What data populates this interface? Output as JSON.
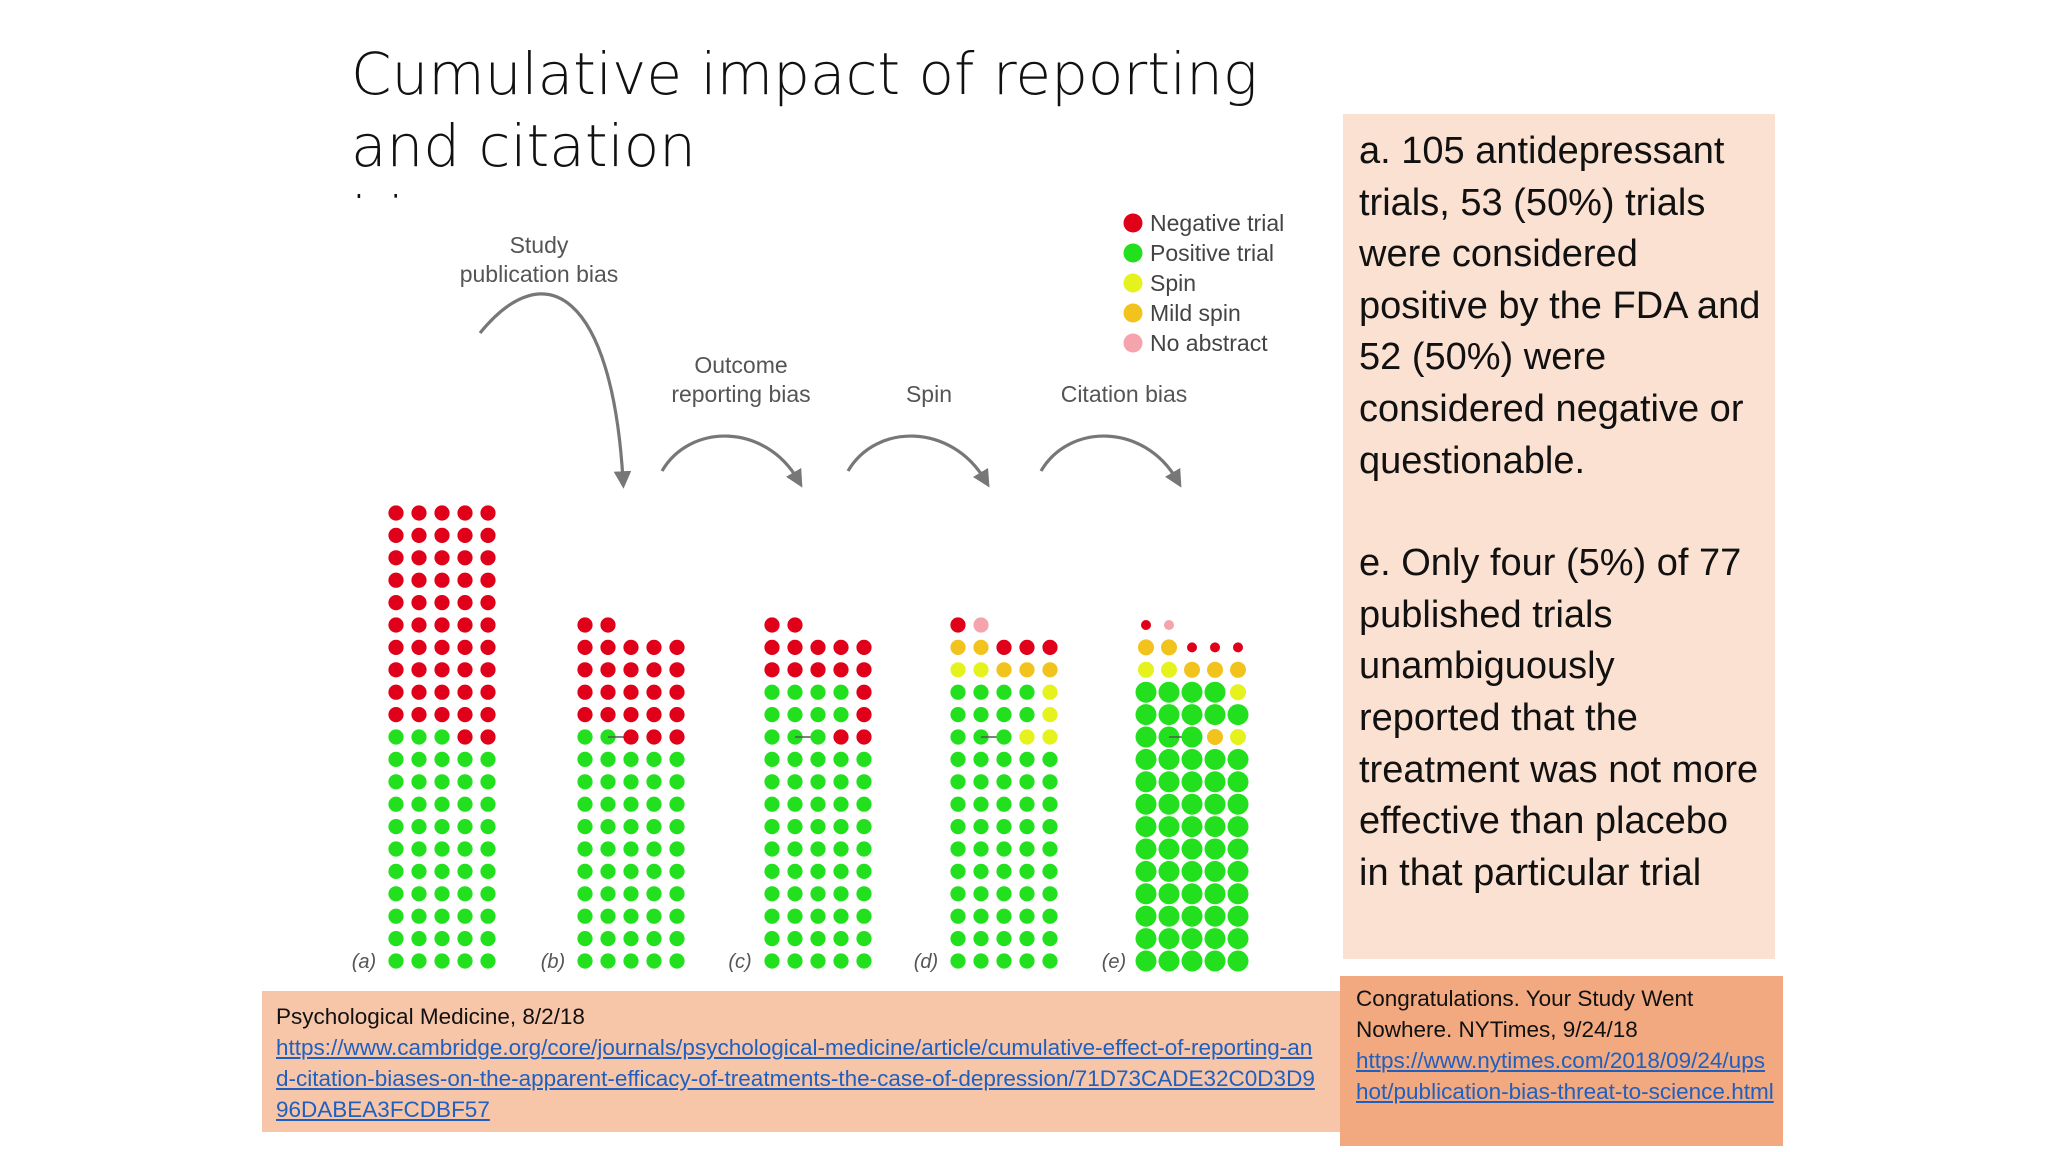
{
  "title": {
    "line1": "Cumulative impact of reporting and citation",
    "line2": "bias"
  },
  "figure": {
    "stage_labels": {
      "study_line1": "Study",
      "study_line2": "publication bias",
      "outcome_line1": "Outcome",
      "outcome_line2": "reporting bias",
      "spin": "Spin",
      "citation": "Citation bias"
    },
    "panel_letters": [
      "(a)",
      "(b)",
      "(c)",
      "(d)",
      "(e)"
    ],
    "legend": [
      {
        "label": "Negative trial",
        "color": "#e0001a"
      },
      {
        "label": "Positive trial",
        "color": "#22e01e"
      },
      {
        "label": "Spin",
        "color": "#e5f21d"
      },
      {
        "label": "Mild spin",
        "color": "#f2c21d"
      },
      {
        "label": "No abstract",
        "color": "#f5a3ad"
      }
    ],
    "colors": {
      "R": "#e0001a",
      "G": "#22e01e",
      "Y": "#e5f21d",
      "O": "#f2c21d",
      "P": "#f5a3ad",
      "arrow": "#777777"
    },
    "panels": [
      {
        "rows": [
          "RRRRR",
          "RRRRR",
          "RRRRR",
          "RRRRR",
          "RRRRR",
          "RRRRR",
          "RRRRR",
          "RRRRR",
          "RRRRR",
          "RRRRR",
          "GGGRR",
          "GGGGG",
          "GGGGG",
          "GGGGG",
          "GGGGG",
          "GGGGG",
          "GGGGG",
          "GGGGG",
          "GGGGG",
          "GGGGG",
          "GGGGG"
        ]
      },
      {
        "top": "RR",
        "rows": [
          "RRRRR",
          "RRRRR",
          "RRRRR",
          "RRRRR",
          "GG-RRR",
          "GGGGG",
          "GGGGG",
          "GGGGG",
          "GGGGG",
          "GGGGG",
          "GGGGG",
          "GGGGG",
          "GGGGG",
          "GGGGG",
          "GGGGG"
        ]
      },
      {
        "top": "RR",
        "rows": [
          "RRRRR",
          "RRRRR",
          "GGGGR",
          "GGGGR",
          "GG-GRR",
          "GGGGG",
          "GGGGG",
          "GGGGG",
          "GGGGG",
          "GGGGG",
          "GGGGG",
          "GGGGG",
          "GGGGG",
          "GGGGG",
          "GGGGG"
        ]
      },
      {
        "top": "RP",
        "rows": [
          "OORRR",
          "YYOOO",
          "GGGGY",
          "GGGGY",
          "GG-GYY",
          "GGGGG",
          "GGGGG",
          "GGGGG",
          "GGGGG",
          "GGGGG",
          "GGGGG",
          "GGGGG",
          "GGGGG",
          "GGGGG",
          "GGGGG"
        ]
      },
      {
        "top": "rp",
        "rows": [
          "OOrrr",
          "YYOOO",
          "GGGGY",
          "GGGGG",
          "GG-GOY",
          "GGGGG",
          "GGGGG",
          "GGGGG",
          "GGGGG",
          "GGGGG",
          "GGGGG",
          "GGGGG",
          "GGGGG",
          "GGGGG",
          "GGGGG"
        ],
        "big": true
      }
    ]
  },
  "summary": {
    "para_a": "a. 105 antidepressant trials, 53 (50%) trials were considered positive by the FDA and 52 (50%) were considered negative or questionable.",
    "para_e": "e. Only four (5%) of 77 published trials unambiguously reported that the treatment was not more effective than placebo in that particular trial"
  },
  "ref_left": {
    "source": "Psychological Medicine, 8/2/18",
    "link": "https://www.cambridge.org/core/journals/psychological-medicine/article/cumulative-effect-of-reporting-and-citation-biases-on-the-apparent-efficacy-of-treatments-the-case-of-depression/71D73CADE32C0D3D996DABEA3FCDBF57"
  },
  "ref_right": {
    "source": "Congratulations. Your Study Went Nowhere. NYTimes, 9/24/18",
    "link": "https://www.nytimes.com/2018/09/24/upshot/publication-bias-threat-to-science.html"
  }
}
